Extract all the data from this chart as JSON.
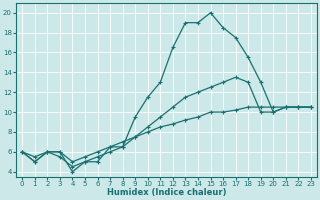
{
  "background_color": "#cce8e8",
  "grid_color": "#ffffff",
  "line_color": "#1a7070",
  "xlabel": "Humidex (Indice chaleur)",
  "ylabel_ticks": [
    4,
    6,
    8,
    10,
    12,
    14,
    16,
    18,
    20
  ],
  "xlim": [
    -0.5,
    23.5
  ],
  "ylim": [
    3.5,
    21.0
  ],
  "xticks": [
    0,
    1,
    2,
    3,
    4,
    5,
    6,
    7,
    8,
    9,
    10,
    11,
    12,
    13,
    14,
    15,
    16,
    17,
    18,
    19,
    20,
    21,
    22,
    23
  ],
  "line1": {
    "x": [
      0,
      1,
      2,
      3,
      4,
      5,
      6,
      7,
      8,
      9,
      10,
      11,
      12,
      13,
      14,
      15,
      16,
      17,
      18,
      19,
      20,
      21,
      22,
      23
    ],
    "y": [
      6,
      5,
      6,
      6,
      4,
      5,
      5,
      6.5,
      6.5,
      9.5,
      11.5,
      13,
      16.5,
      19,
      19,
      20,
      18.5,
      17.5,
      15.5,
      13,
      10,
      10.5,
      10.5,
      10.5
    ]
  },
  "line2": {
    "x": [
      0,
      1,
      2,
      3,
      4,
      5,
      6,
      7,
      8,
      9,
      10,
      11,
      12,
      13,
      14,
      15,
      16,
      17,
      18,
      19,
      20,
      21,
      22,
      23
    ],
    "y": [
      6,
      5,
      6,
      5.5,
      4.5,
      5,
      5.5,
      6,
      6.5,
      7.5,
      8.5,
      9.5,
      10.5,
      11.5,
      12,
      12.5,
      13,
      13.5,
      13,
      10,
      10,
      10.5,
      10.5,
      10.5
    ]
  },
  "line3": {
    "x": [
      0,
      1,
      2,
      3,
      4,
      5,
      6,
      7,
      8,
      9,
      10,
      11,
      12,
      13,
      14,
      15,
      16,
      17,
      18,
      19,
      20,
      21,
      22,
      23
    ],
    "y": [
      6,
      5.5,
      6,
      6,
      5,
      5.5,
      6,
      6.5,
      7,
      7.5,
      8,
      8.5,
      8.8,
      9.2,
      9.5,
      10,
      10,
      10.2,
      10.5,
      10.5,
      10.5,
      10.5,
      10.5,
      10.5
    ]
  },
  "figsize": [
    3.2,
    2.0
  ],
  "dpi": 100,
  "xlabel_fontsize": 6,
  "tick_labelsize": 5,
  "linewidth": 0.9,
  "markersize": 3.0,
  "markeredgewidth": 0.8
}
